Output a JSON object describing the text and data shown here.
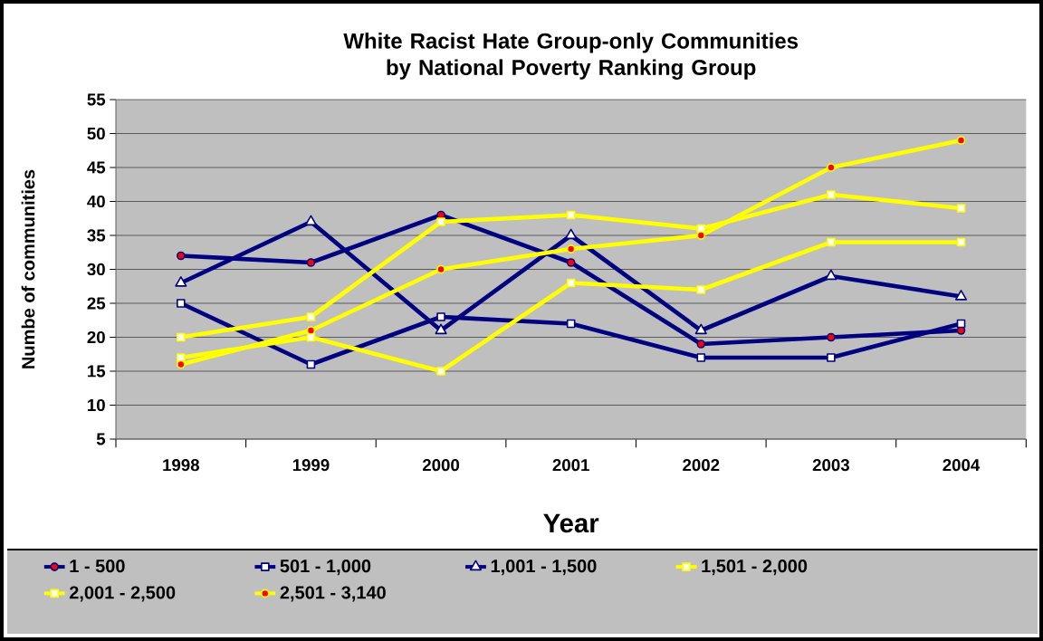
{
  "chart_data": {
    "type": "line",
    "title": "White Racist Hate Group-only Communities\nby National Poverty Ranking Group",
    "xlabel": "Year",
    "ylabel": "Numbe of communities",
    "categories": [
      "1998",
      "1999",
      "2000",
      "2001",
      "2002",
      "2003",
      "2004"
    ],
    "ylim": [
      5,
      55
    ],
    "yticks": [
      5,
      10,
      15,
      20,
      25,
      30,
      35,
      40,
      45,
      50,
      55
    ],
    "grid": "y",
    "legend": "bottom",
    "line_style": "solid",
    "series": [
      {
        "name": "1 - 500",
        "color": "#000080",
        "marker": "circle",
        "values": [
          32,
          31,
          38,
          31,
          19,
          20,
          21
        ]
      },
      {
        "name": "501 - 1,000",
        "color": "#000080",
        "marker": "square",
        "values": [
          25,
          16,
          23,
          22,
          17,
          17,
          22
        ]
      },
      {
        "name": "1,001 - 1,500",
        "color": "#000080",
        "marker": "triangle",
        "values": [
          28,
          37,
          21,
          35,
          21,
          29,
          26
        ]
      },
      {
        "name": "1,501 - 2,000",
        "color": "#ffff00",
        "marker": "square",
        "values": [
          17,
          20,
          15,
          28,
          27,
          34,
          34
        ]
      },
      {
        "name": "2,001 - 2,500",
        "color": "#ffff00",
        "marker": "square",
        "values": [
          20,
          23,
          37,
          38,
          36,
          41,
          39
        ]
      },
      {
        "name": "2,501 - 3,140",
        "color": "#ffff00",
        "marker": "circle",
        "values": [
          16,
          21,
          30,
          33,
          35,
          45,
          49
        ]
      }
    ]
  }
}
